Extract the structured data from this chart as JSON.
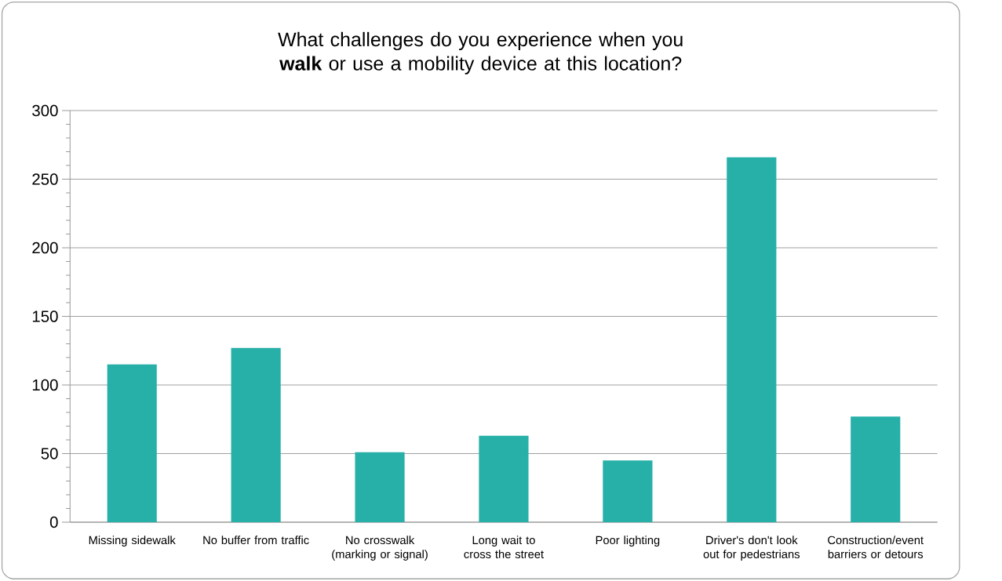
{
  "chart_data": {
    "type": "bar",
    "title": "What challenges do you experience when you **walk** or use a mobility device at this location?",
    "categories": [
      "Missing sidewalk",
      "No buffer from traffic",
      "No crosswalk (marking or signal)",
      "Long wait to cross the street",
      "Poor lighting",
      "Driver's don't look out for pedestrians",
      "Construction/event barriers or detours"
    ],
    "values": [
      115,
      127,
      51,
      63,
      45,
      266,
      77
    ],
    "color": "#27b0a8",
    "ylim": [
      0,
      300
    ],
    "yticks": [
      0,
      50,
      100,
      150,
      200,
      250,
      300
    ],
    "grid": "y"
  }
}
